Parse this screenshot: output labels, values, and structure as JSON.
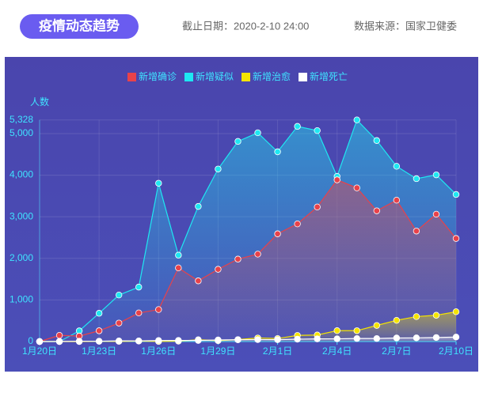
{
  "header": {
    "title": "疫情动态趋势",
    "date": "截止日期：2020-2-10 24:00",
    "source": "数据来源：国家卫健委"
  },
  "chart_data": {
    "type": "line",
    "area": true,
    "y_label": "人数",
    "grid": true,
    "categories": [
      "1月20日",
      null,
      null,
      "1月23日",
      null,
      null,
      "1月26日",
      null,
      null,
      "1月29日",
      null,
      null,
      "2月1日",
      null,
      null,
      "2月4日",
      null,
      null,
      "2月7日",
      null,
      null,
      "2月10日"
    ],
    "series": [
      {
        "name": "新增确诊",
        "color": "#e8424a",
        "values": [
          0,
          149,
          131,
          259,
          444,
          688,
          769,
          1771,
          1459,
          1737,
          1982,
          2102,
          2590,
          2829,
          3235,
          3887,
          3694,
          3143,
          3399,
          2656,
          3062,
          2478
        ]
      },
      {
        "name": "新增疑似",
        "color": "#1ee8f2",
        "values": [
          0,
          0,
          257,
          680,
          1118,
          1309,
          3806,
          2077,
          3248,
          4148,
          4812,
          5019,
          4562,
          5173,
          5072,
          3971,
          5328,
          4833,
          4214,
          3916,
          4008,
          3536
        ]
      },
      {
        "name": "新增治愈",
        "color": "#f5e400",
        "values": [
          0,
          0,
          0,
          6,
          3,
          11,
          2,
          9,
          43,
          21,
          47,
          85,
          73,
          147,
          157,
          262,
          261,
          387,
          510,
          600,
          632,
          716
        ]
      },
      {
        "name": "新增死亡",
        "color": "#ffffff",
        "values": [
          0,
          3,
          8,
          8,
          16,
          15,
          24,
          26,
          26,
          38,
          43,
          46,
          45,
          57,
          64,
          65,
          73,
          73,
          86,
          89,
          97,
          108
        ]
      }
    ],
    "ylim": [
      0,
      5328
    ],
    "yticks": [
      0,
      {
        "value": 1000,
        "label": "1,000"
      },
      {
        "value": 2000,
        "label": "2,000"
      },
      {
        "value": 3000,
        "label": "3,000"
      },
      {
        "value": 4000,
        "label": "4,000"
      },
      {
        "value": 5000,
        "label": "5,000"
      },
      {
        "value": 5328,
        "label": "5,328"
      }
    ]
  }
}
